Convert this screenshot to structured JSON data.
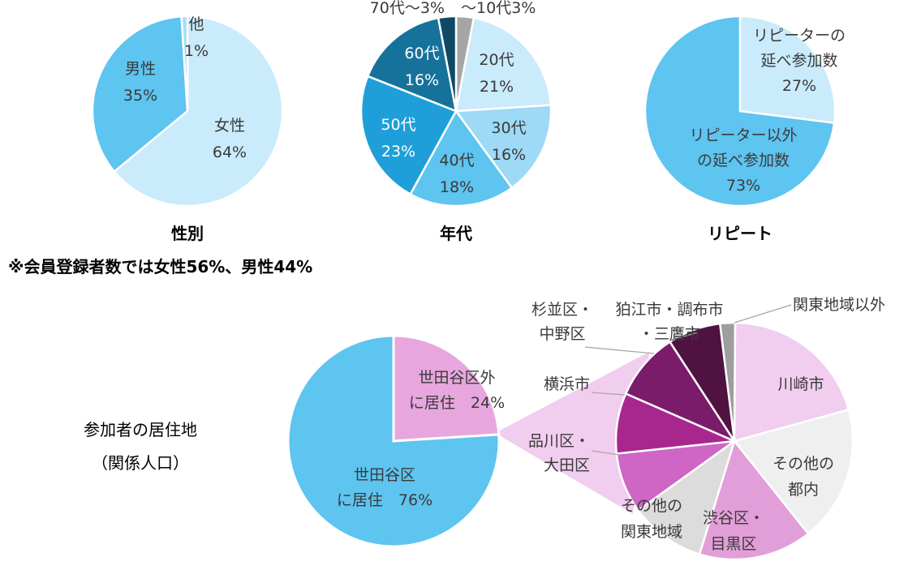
{
  "note": "※会員登録者数では女性56%、男性44%",
  "chart_data": [
    {
      "type": "pie",
      "title": "性別",
      "slices": [
        {
          "label": "女性",
          "value": 64,
          "pct": "64%",
          "color": "#c9ebfb"
        },
        {
          "label": "男性",
          "value": 35,
          "pct": "35%",
          "color": "#5ec4f0"
        },
        {
          "label": "他",
          "value": 1,
          "pct": "1%",
          "color": "#a8dcf5"
        }
      ]
    },
    {
      "type": "pie",
      "title": "年代",
      "slices": [
        {
          "label": "〜10代",
          "value": 3,
          "pct": "3%",
          "color": "#a6a6a6"
        },
        {
          "label": "20代",
          "value": 21,
          "pct": "21%",
          "color": "#c9ebfb"
        },
        {
          "label": "30代",
          "value": 16,
          "pct": "16%",
          "color": "#9ed9f6"
        },
        {
          "label": "40代",
          "value": 18,
          "pct": "18%",
          "color": "#5ec4f0"
        },
        {
          "label": "50代",
          "value": 23,
          "pct": "23%",
          "color": "#1e9fd9"
        },
        {
          "label": "60代",
          "value": 16,
          "pct": "16%",
          "color": "#16729b"
        },
        {
          "label": "70代〜",
          "value": 3,
          "pct": "3%",
          "color": "#0d4a66"
        }
      ]
    },
    {
      "type": "pie",
      "title": "リピート",
      "slices": [
        {
          "label": "リピーターの延べ参加数",
          "label_lines": [
            "リピーターの",
            "延べ参加数"
          ],
          "value": 27,
          "pct": "27%",
          "color": "#c9ebfb"
        },
        {
          "label": "リピーター以外の延べ参加数",
          "label_lines": [
            "リピーター以外",
            "の延べ参加数"
          ],
          "value": 73,
          "pct": "73%",
          "color": "#5ec4f0"
        }
      ]
    },
    {
      "type": "pie",
      "title": "参加者の居住地",
      "subtitle": "（関係人口）",
      "slices": [
        {
          "label": "世田谷区外に居住",
          "label_lines": [
            "世田谷区外",
            "に居住"
          ],
          "value": 24,
          "pct": "24%",
          "color": "#e7a7de"
        },
        {
          "label": "世田谷区に居住",
          "label_lines": [
            "世田谷区",
            "に居住"
          ],
          "value": 76,
          "pct": "76%",
          "color": "#5ec4f0"
        }
      ],
      "breakdown": {
        "parent": "世田谷区外に居住",
        "slices": [
          {
            "label": "関東地域以外",
            "value": 2,
            "color": "#9e9e9e"
          },
          {
            "label": "川崎市",
            "value": 20,
            "color": "#f1cdef"
          },
          {
            "label": "その他の都内",
            "label_lines": [
              "その他の",
              "都内"
            ],
            "value": 18,
            "color": "#efefef"
          },
          {
            "label": "渋谷区・目黒区",
            "label_lines": [
              "渋谷区・",
              "目黒区"
            ],
            "value": 15,
            "color": "#e29ed8"
          },
          {
            "label": "その他の関東地域",
            "label_lines": [
              "その他の",
              "関東地域"
            ],
            "value": 10,
            "color": "#dcdcdc"
          },
          {
            "label": "品川区・大田区",
            "label_lines": [
              "品川区・",
              "大田区"
            ],
            "value": 8,
            "color": "#cf66c5"
          },
          {
            "label": "横浜市",
            "value": 8,
            "color": "#a8278f"
          },
          {
            "label": "杉並区・中野区",
            "label_lines": [
              "杉並区・",
              "中野区"
            ],
            "value": 9,
            "color": "#7a1c6a"
          },
          {
            "label": "狛江市・調布市・三鷹市",
            "label_lines": [
              "狛江市・調布市",
              "・三鷹市"
            ],
            "value": 7,
            "color": "#4f1241"
          }
        ]
      }
    }
  ]
}
